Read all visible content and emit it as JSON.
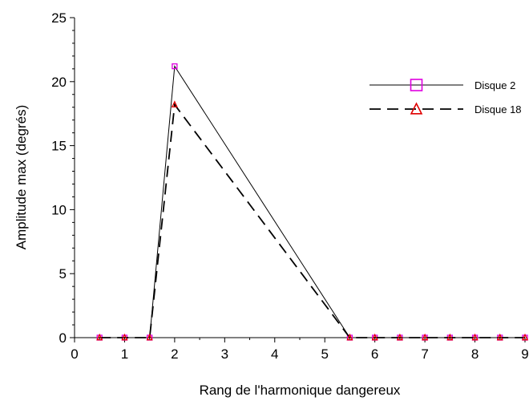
{
  "chart_data": {
    "type": "line",
    "title": "",
    "xlabel": "Rang de l'harmonique dangereux",
    "ylabel": "Amplitude max (degrés)",
    "xlim": [
      0,
      9
    ],
    "ylim": [
      0,
      25
    ],
    "xticks": [
      "0",
      "1",
      "2",
      "3",
      "4",
      "5",
      "6",
      "7",
      "8",
      "9"
    ],
    "yticks": [
      "0",
      "5",
      "10",
      "15",
      "20",
      "25"
    ],
    "grid": false,
    "legend_position": "top-right",
    "series": [
      {
        "name": "Disque 2",
        "line_style": "solid",
        "line_color": "#000000",
        "marker": "square",
        "marker_color": "#e000e0",
        "x": [
          0.5,
          1,
          1.5,
          2,
          5.5,
          6,
          6.5,
          7,
          7.5,
          8,
          8.5,
          9
        ],
        "y": [
          0,
          0,
          0,
          21.2,
          0,
          0,
          0,
          0,
          0,
          0,
          0,
          0
        ]
      },
      {
        "name": "Disque 18",
        "line_style": "dashed",
        "line_color": "#000000",
        "marker": "triangle",
        "marker_color": "#e00000",
        "x": [
          0.5,
          1,
          1.5,
          2,
          5.5,
          6,
          6.5,
          7,
          7.5,
          8,
          8.5,
          9
        ],
        "y": [
          0,
          0,
          0,
          18.2,
          0,
          0,
          0,
          0,
          0,
          0,
          0,
          0
        ]
      }
    ]
  }
}
